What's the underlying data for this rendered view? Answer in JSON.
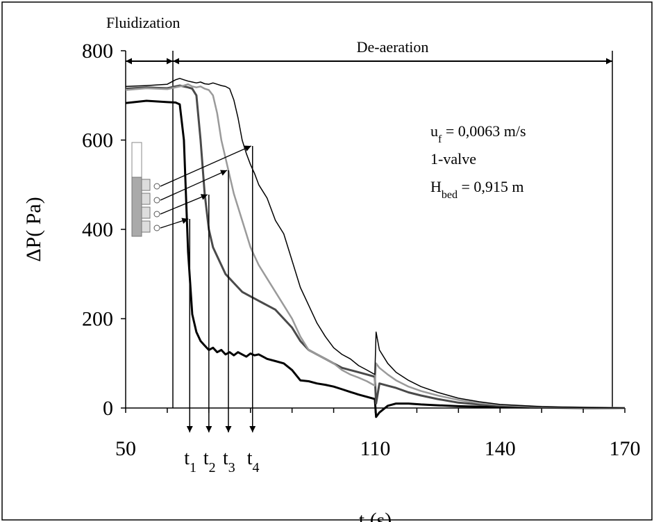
{
  "chart_data": {
    "type": "line",
    "x_label": "t (s)",
    "y_label": "ΔP( Pa)",
    "xlim": [
      50,
      170
    ],
    "ylim": [
      0,
      800
    ],
    "xticks": [
      50,
      110,
      140,
      170
    ],
    "xminor_ticks": [
      60,
      70,
      80,
      90,
      100,
      120,
      130,
      150,
      160
    ],
    "yticks": [
      0,
      200,
      400,
      600,
      800
    ],
    "phases": [
      {
        "label": "Fluidization",
        "from": 50,
        "to": 61.35
      },
      {
        "label": "De-aeration",
        "from": 61.35,
        "to": 167
      }
    ],
    "markers": [
      {
        "text": "t",
        "sub": "1",
        "x": 65.4
      },
      {
        "text": "t",
        "sub": "2",
        "x": 70.0
      },
      {
        "text": "t",
        "sub": "3",
        "x": 74.7
      },
      {
        "text": "t",
        "sub": "4",
        "x": 80.5
      }
    ],
    "annotations": [
      {
        "text": "u",
        "sub": "f",
        "after": " = 0,0063 m/s"
      },
      {
        "text": "1-valve"
      },
      {
        "text": "H",
        "sub": "bed",
        "after": " = 0,915 m"
      }
    ],
    "x": [
      50,
      55,
      60,
      62,
      63,
      64,
      65,
      66,
      67,
      68,
      69,
      70,
      71,
      72,
      73,
      74,
      75,
      76,
      77,
      78,
      79,
      80,
      81,
      82,
      84,
      86,
      88,
      90,
      92,
      94,
      96,
      98,
      100,
      102,
      104,
      106,
      108,
      109.9,
      110.2,
      111,
      113,
      115,
      118,
      121,
      125,
      130,
      135,
      140,
      150,
      160,
      170
    ],
    "series": [
      {
        "color": "#000000",
        "width": 3,
        "values": [
          683,
          688,
          685,
          684,
          680,
          600,
          350,
          210,
          170,
          150,
          140,
          130,
          135,
          125,
          130,
          120,
          125,
          118,
          125,
          120,
          115,
          122,
          118,
          120,
          110,
          105,
          100,
          85,
          62,
          60,
          55,
          52,
          48,
          42,
          36,
          30,
          25,
          20,
          -20,
          -10,
          5,
          10,
          10,
          8,
          6,
          4,
          3,
          2,
          1,
          0,
          0
        ]
      },
      {
        "color": "#4a4a4a",
        "width": 3,
        "values": [
          715,
          718,
          716,
          720,
          722,
          720,
          718,
          715,
          700,
          600,
          480,
          400,
          360,
          340,
          320,
          300,
          290,
          280,
          270,
          260,
          255,
          250,
          245,
          240,
          230,
          220,
          200,
          180,
          150,
          130,
          120,
          110,
          100,
          90,
          85,
          80,
          75,
          70,
          10,
          55,
          50,
          45,
          35,
          28,
          20,
          12,
          8,
          5,
          2,
          1,
          0
        ]
      },
      {
        "color": "#9a9a9a",
        "width": 2.5,
        "values": [
          712,
          716,
          714,
          718,
          720,
          722,
          725,
          720,
          718,
          720,
          715,
          712,
          700,
          660,
          600,
          560,
          520,
          480,
          450,
          420,
          390,
          360,
          340,
          320,
          290,
          260,
          230,
          200,
          160,
          130,
          120,
          110,
          100,
          85,
          75,
          68,
          60,
          50,
          100,
          90,
          75,
          62,
          48,
          38,
          28,
          18,
          11,
          7,
          3,
          1,
          0
        ]
      },
      {
        "color": "#000000",
        "width": 1.5,
        "values": [
          720,
          722,
          725,
          735,
          738,
          735,
          732,
          730,
          728,
          730,
          726,
          725,
          728,
          725,
          722,
          720,
          715,
          690,
          650,
          600,
          570,
          545,
          525,
          500,
          470,
          420,
          390,
          330,
          270,
          230,
          190,
          160,
          135,
          120,
          110,
          95,
          85,
          75,
          170,
          130,
          100,
          80,
          62,
          48,
          35,
          22,
          14,
          8,
          3,
          1,
          0
        ]
      }
    ]
  }
}
